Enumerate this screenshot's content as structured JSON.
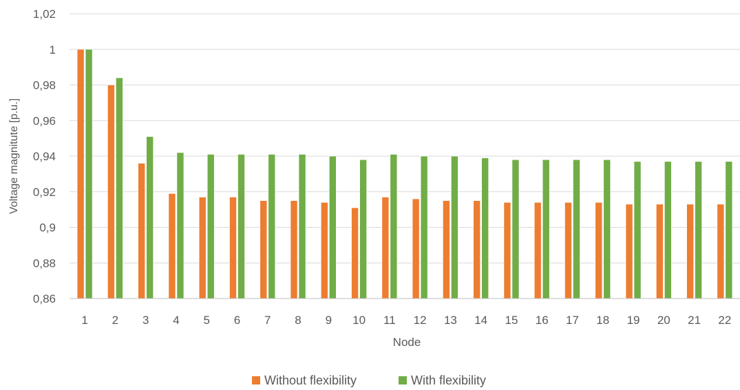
{
  "chart_data": {
    "type": "bar",
    "title": "",
    "xlabel": "Node",
    "ylabel": "Voltage magnitute [p.u.]",
    "ylim": [
      0.86,
      1.02
    ],
    "yticks": [
      "0,86",
      "0,88",
      "0,9",
      "0,92",
      "0,94",
      "0,96",
      "0,98",
      "1",
      "1,02"
    ],
    "ytick_values": [
      0.86,
      0.88,
      0.9,
      0.92,
      0.94,
      0.96,
      0.98,
      1.0,
      1.02
    ],
    "grid": true,
    "legend_position": "bottom",
    "categories": [
      "1",
      "2",
      "3",
      "4",
      "5",
      "6",
      "7",
      "8",
      "9",
      "10",
      "11",
      "12",
      "13",
      "14",
      "15",
      "16",
      "17",
      "18",
      "19",
      "20",
      "21",
      "22"
    ],
    "series": [
      {
        "name": "Without flexibility",
        "color": "#ED7D31",
        "values": [
          1.0,
          0.98,
          0.936,
          0.919,
          0.917,
          0.917,
          0.915,
          0.915,
          0.914,
          0.911,
          0.917,
          0.916,
          0.915,
          0.915,
          0.914,
          0.914,
          0.914,
          0.914,
          0.913,
          0.913,
          0.913,
          0.913
        ]
      },
      {
        "name": "With flexibility",
        "color": "#70AD47",
        "values": [
          1.0,
          0.984,
          0.951,
          0.942,
          0.941,
          0.941,
          0.941,
          0.941,
          0.94,
          0.938,
          0.941,
          0.94,
          0.94,
          0.939,
          0.938,
          0.938,
          0.938,
          0.938,
          0.937,
          0.937,
          0.937,
          0.937
        ]
      }
    ]
  }
}
